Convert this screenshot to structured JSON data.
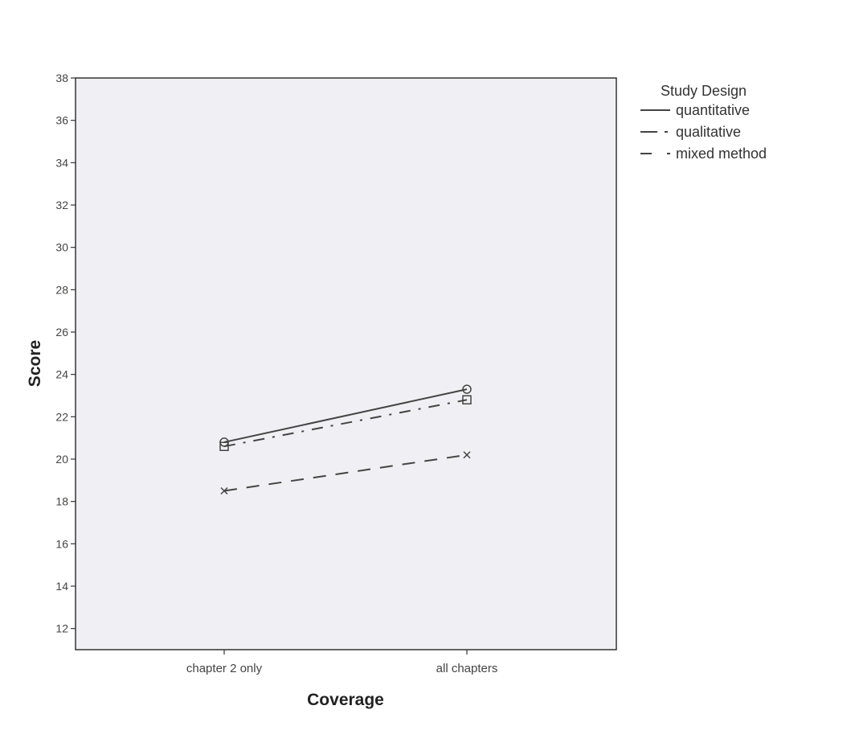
{
  "chart_data": {
    "type": "line",
    "xlabel": "Coverage",
    "ylabel": "Score",
    "categories": [
      "chapter 2 only",
      "all chapters"
    ],
    "ylim": [
      11,
      38
    ],
    "yticks": [
      12,
      14,
      16,
      18,
      20,
      22,
      24,
      26,
      28,
      30,
      32,
      34,
      36,
      38
    ],
    "grid": false,
    "legend": {
      "title": "Study Design",
      "placement": "right"
    },
    "series": [
      {
        "name": "quantitative",
        "values": [
          20.8,
          23.3
        ],
        "line_style": "solid",
        "marker": "circle"
      },
      {
        "name": "qualitative",
        "values": [
          20.6,
          22.8
        ],
        "line_style": "dash-dot",
        "marker": "square"
      },
      {
        "name": "mixed method",
        "values": [
          18.5,
          20.2
        ],
        "line_style": "dashed",
        "marker": "x"
      }
    ],
    "colors": {
      "plot_background": "#f0eff3",
      "line": "#444444",
      "frame": "#333333"
    }
  }
}
